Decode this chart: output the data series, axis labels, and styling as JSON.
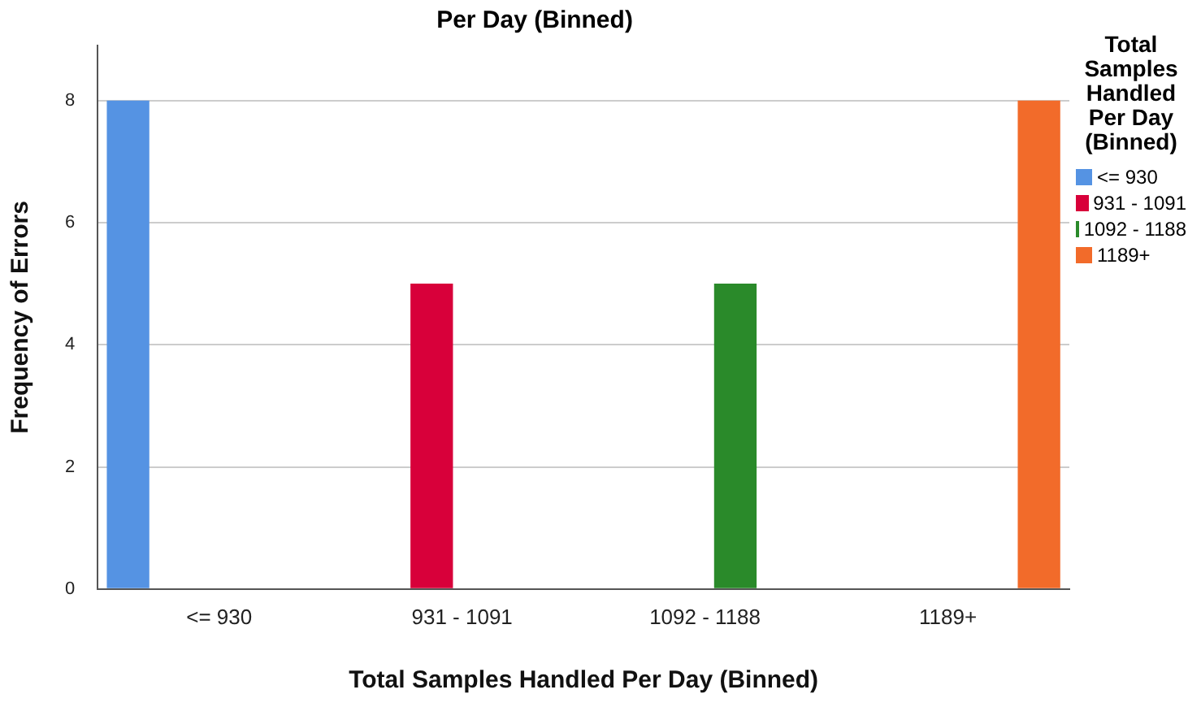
{
  "chart_data": {
    "type": "bar",
    "title": "Per Day (Binned)",
    "xlabel": "Total Samples Handled Per Day (Binned)",
    "ylabel": "Frequency of Errors",
    "legend_title": "Total Samples Handled Per Day (Binned)",
    "categories": [
      "<= 930",
      "931 - 1091",
      "1092 - 1188",
      "1189+"
    ],
    "series": [
      {
        "name": "<= 930",
        "color": "#5593e3",
        "values": [
          8,
          null,
          null,
          null
        ]
      },
      {
        "name": "931 - 1091",
        "color": "#d8003a",
        "values": [
          null,
          5,
          null,
          null
        ]
      },
      {
        "name": "1092 - 1188",
        "color": "#2a8a2a",
        "values": [
          null,
          null,
          5,
          null
        ]
      },
      {
        "name": "1189+",
        "color": "#f26b2a",
        "values": [
          null,
          null,
          null,
          8
        ]
      }
    ],
    "ylim": [
      0,
      8.9
    ],
    "yticks": [
      0,
      2,
      4,
      6,
      8
    ],
    "grid": "y",
    "legend": "right"
  }
}
